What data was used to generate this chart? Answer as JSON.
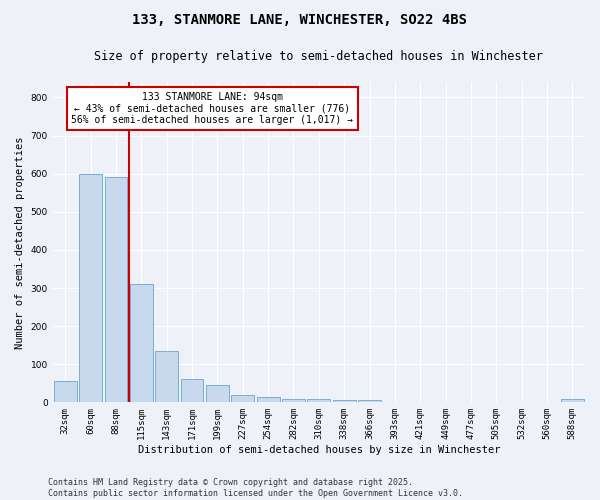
{
  "title": "133, STANMORE LANE, WINCHESTER, SO22 4BS",
  "subtitle": "Size of property relative to semi-detached houses in Winchester",
  "xlabel": "Distribution of semi-detached houses by size in Winchester",
  "ylabel": "Number of semi-detached properties",
  "categories": [
    "32sqm",
    "60sqm",
    "88sqm",
    "115sqm",
    "143sqm",
    "171sqm",
    "199sqm",
    "227sqm",
    "254sqm",
    "282sqm",
    "310sqm",
    "338sqm",
    "366sqm",
    "393sqm",
    "421sqm",
    "449sqm",
    "477sqm",
    "505sqm",
    "532sqm",
    "560sqm",
    "588sqm"
  ],
  "values": [
    55,
    600,
    590,
    310,
    135,
    60,
    45,
    18,
    15,
    10,
    10,
    6,
    5,
    0,
    0,
    0,
    0,
    0,
    0,
    0,
    8
  ],
  "bar_color": "#c8d9ed",
  "bar_edge_color": "#7aaed6",
  "red_line_x": 2.5,
  "annotation_title": "133 STANMORE LANE: 94sqm",
  "annotation_line1": "← 43% of semi-detached houses are smaller (776)",
  "annotation_line2": "56% of semi-detached houses are larger (1,017) →",
  "annotation_box_color": "#ffffff",
  "annotation_box_edge": "#cc0000",
  "red_line_color": "#cc0000",
  "ylim": [
    0,
    840
  ],
  "yticks": [
    0,
    100,
    200,
    300,
    400,
    500,
    600,
    700,
    800
  ],
  "background_color": "#eef2f8",
  "footnote1": "Contains HM Land Registry data © Crown copyright and database right 2025.",
  "footnote2": "Contains public sector information licensed under the Open Government Licence v3.0.",
  "title_fontsize": 10,
  "subtitle_fontsize": 8.5,
  "axis_label_fontsize": 7.5,
  "tick_fontsize": 6.5,
  "annotation_fontsize": 7,
  "footnote_fontsize": 6
}
